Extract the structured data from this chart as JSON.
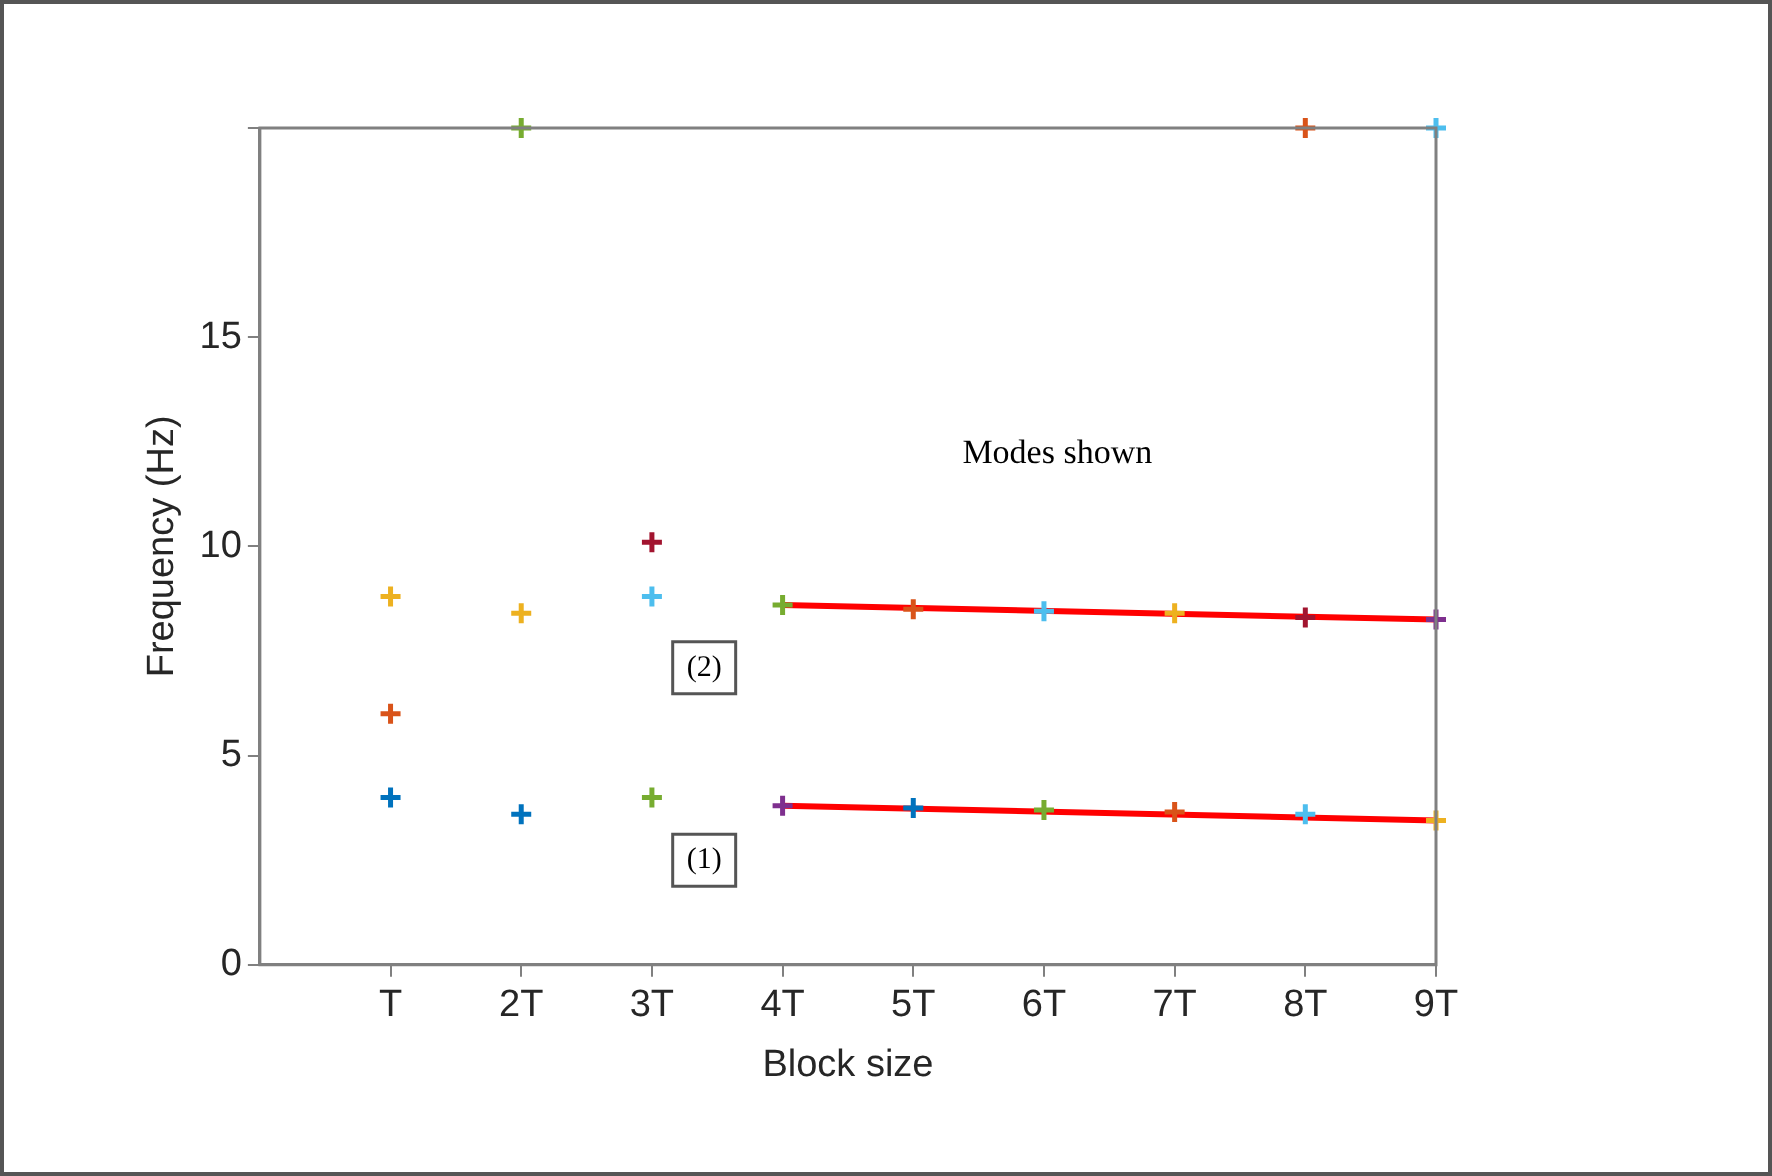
{
  "chart_data": {
    "type": "scatter",
    "xlabel": "Block size",
    "ylabel": "Frequency (Hz)",
    "xlim": [
      0,
      9
    ],
    "xticks": [
      {
        "value": 1,
        "label": "T"
      },
      {
        "value": 2,
        "label": "2T"
      },
      {
        "value": 3,
        "label": "3T"
      },
      {
        "value": 4,
        "label": "4T"
      },
      {
        "value": 5,
        "label": "5T"
      },
      {
        "value": 6,
        "label": "6T"
      },
      {
        "value": 7,
        "label": "7T"
      },
      {
        "value": 8,
        "label": "8T"
      },
      {
        "value": 9,
        "label": "9T"
      }
    ],
    "ylim": [
      0,
      20
    ],
    "yticks": [
      0,
      5,
      10,
      15,
      {
        "value": 20,
        "label": null
      }
    ],
    "marker": "cross",
    "legend": false,
    "grid": false,
    "annotations": [
      "Modes shown",
      {
        "text": "(2)",
        "x": 3.4,
        "y": 7.1
      },
      {
        "text": "(1)",
        "x": 3.4,
        "y": 2.5
      }
    ],
    "series": [
      {
        "type": "scatter",
        "x": [
          1,
          1,
          1,
          2,
          2,
          2,
          3,
          3,
          3,
          4,
          5,
          6,
          7,
          8,
          9,
          4,
          5,
          6,
          7,
          8,
          9,
          8,
          9
        ],
        "values": [
          8.8,
          6.0,
          4.0,
          20,
          8.4,
          3.6,
          10.1,
          8.8,
          4.0,
          8.6,
          8.5,
          8.45,
          8.4,
          8.3,
          8.25,
          3.8,
          3.75,
          3.7,
          3.65,
          3.6,
          3.45,
          20,
          20
        ],
        "colors": [
          "#edb120",
          "#d95319",
          "#0072bd",
          "#77ac30",
          "#edb120",
          "#0072bd",
          "#a2142f",
          "#4dbeee",
          "#77ac30",
          "#77ac30",
          "#d95319",
          "#4dbeee",
          "#edb120",
          "#a2142f",
          "#7e2f8e",
          "#7e2f8e",
          "#0072bd",
          "#77ac30",
          "#d95319",
          "#4dbeee",
          "#edb120",
          "#d95319",
          "#4dbeee"
        ]
      },
      {
        "type": "line",
        "color": "#ff0000",
        "x": [
          4,
          9
        ],
        "values": [
          8.6,
          8.25
        ],
        "marker": "none",
        "line_style": "solid"
      },
      {
        "type": "line",
        "color": "#ff0000",
        "x": [
          4,
          9
        ],
        "values": [
          3.8,
          3.45
        ],
        "marker": "none",
        "line_style": "solid"
      }
    ]
  }
}
